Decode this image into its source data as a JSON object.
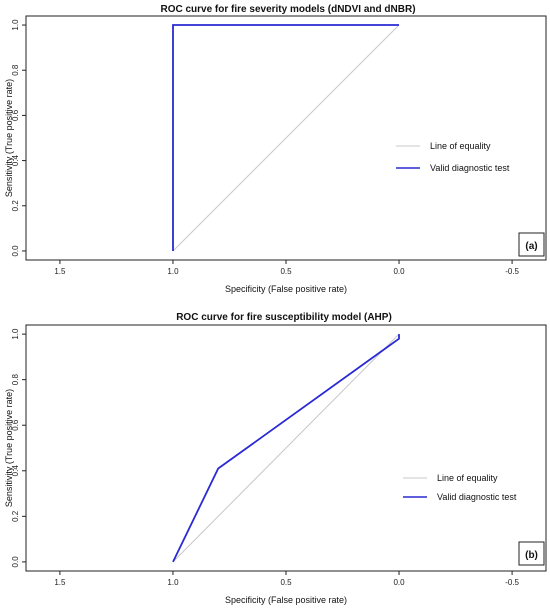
{
  "chart_data": [
    {
      "type": "line",
      "title": "ROC curve for fire severity models (dNDVI and dNBR)",
      "xlabel": "Specificity (False positive rate)",
      "ylabel": "Sensitivity (True positive rate)",
      "x_reversed": true,
      "xlim": [
        1.65,
        -0.65
      ],
      "ylim": [
        -0.04,
        1.04
      ],
      "xticks": [
        1.5,
        1.0,
        0.5,
        0.0,
        -0.5
      ],
      "xtick_labels": [
        "1.5",
        "1.0",
        "0.5",
        "0.0",
        "-0.5"
      ],
      "yticks": [
        0.0,
        0.2,
        0.4,
        0.6,
        0.8,
        1.0
      ],
      "ytick_labels": [
        "0.0",
        "0.2",
        "0.4",
        "0.6",
        "0.8",
        "1.0"
      ],
      "legend_position": "right",
      "panel_label": "(a)",
      "series": [
        {
          "name": "Line of equality",
          "color": "#c8c8c8",
          "x": [
            1.0,
            0.0
          ],
          "y": [
            0.0,
            1.0
          ]
        },
        {
          "name": "Valid diagnostic test",
          "color": "#2a2ad4",
          "x": [
            1.0,
            1.0,
            0.0
          ],
          "y": [
            0.0,
            1.0,
            1.0
          ]
        }
      ]
    },
    {
      "type": "line",
      "title": "ROC curve for fire susceptibility model (AHP)",
      "xlabel": "Specificity (False positive rate)",
      "ylabel": "Sensitivity (True positive rate)",
      "x_reversed": true,
      "xlim": [
        1.65,
        -0.65
      ],
      "ylim": [
        -0.04,
        1.04
      ],
      "xticks": [
        1.5,
        1.0,
        0.5,
        0.0,
        -0.5
      ],
      "xtick_labels": [
        "1.5",
        "1.0",
        "0.5",
        "0.0",
        "-0.5"
      ],
      "yticks": [
        0.0,
        0.2,
        0.4,
        0.6,
        0.8,
        1.0
      ],
      "ytick_labels": [
        "0.0",
        "0.2",
        "0.4",
        "0.6",
        "0.8",
        "1.0"
      ],
      "legend_position": "right",
      "panel_label": "(b)",
      "series": [
        {
          "name": "Line of equality",
          "color": "#c8c8c8",
          "x": [
            1.0,
            0.0
          ],
          "y": [
            0.0,
            1.0
          ]
        },
        {
          "name": "Valid diagnostic test",
          "color": "#2a2ad4",
          "x": [
            1.0,
            0.8,
            0.0,
            0.0
          ],
          "y": [
            0.0,
            0.41,
            0.98,
            1.0
          ]
        }
      ]
    }
  ]
}
